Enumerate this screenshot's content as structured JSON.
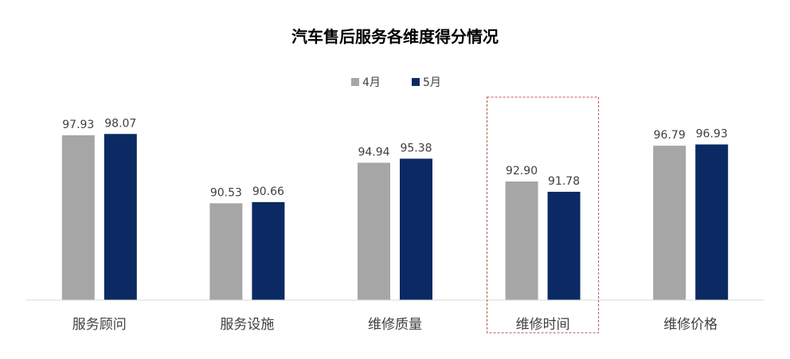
{
  "chart_data": {
    "type": "bar",
    "title": "汽车售后服务各维度得分情况",
    "categories": [
      "服务顾问",
      "服务设施",
      "维修质量",
      "维修时间",
      "维修价格"
    ],
    "series": [
      {
        "name": "4月",
        "values": [
          97.93,
          90.53,
          94.94,
          92.9,
          96.79
        ],
        "color": "#A6A6A6"
      },
      {
        "name": "5月",
        "values": [
          98.07,
          90.66,
          95.38,
          91.78,
          96.93
        ],
        "color": "#0B2A63"
      }
    ],
    "value_format_decimals": 2,
    "ylim": [
      80,
      100
    ],
    "grid": false,
    "legend_position": "top-center",
    "highlight": {
      "category": "维修时间",
      "style": "dashed-box",
      "color": "#C0504D"
    }
  }
}
